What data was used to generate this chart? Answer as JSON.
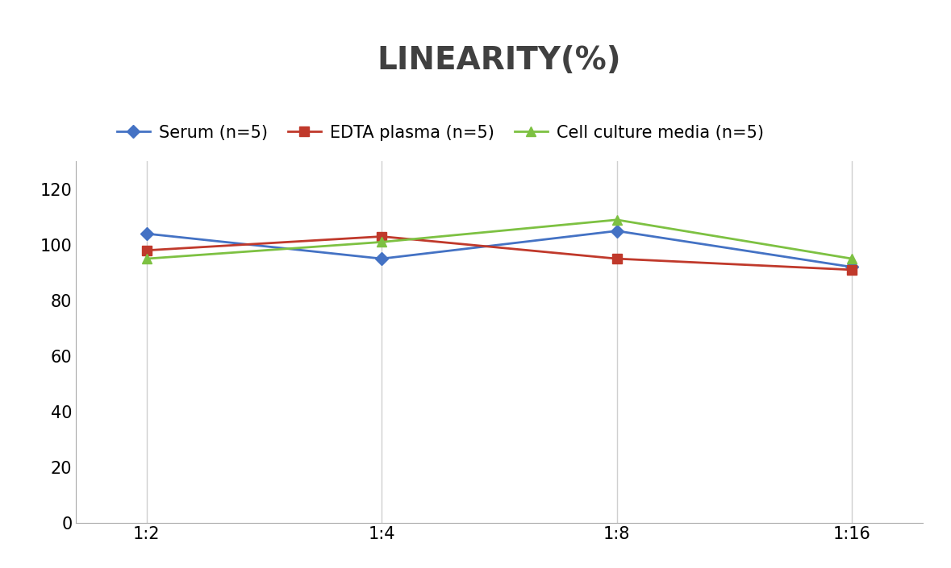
{
  "title": "LINEARITY(%)",
  "title_fontsize": 28,
  "title_fontweight": "bold",
  "title_color": "#404040",
  "x_labels": [
    "1:2",
    "1:4",
    "1:8",
    "1:16"
  ],
  "x_positions": [
    0,
    1,
    2,
    3
  ],
  "series": [
    {
      "label": "Serum (n=5)",
      "values": [
        104,
        95,
        105,
        92
      ],
      "color": "#4472C4",
      "marker": "D",
      "markersize": 8,
      "linewidth": 2
    },
    {
      "label": "EDTA plasma (n=5)",
      "values": [
        98,
        103,
        95,
        91
      ],
      "color": "#C0392B",
      "marker": "s",
      "markersize": 8,
      "linewidth": 2
    },
    {
      "label": "Cell culture media (n=5)",
      "values": [
        95,
        101,
        109,
        95
      ],
      "color": "#7DC142",
      "marker": "^",
      "markersize": 9,
      "linewidth": 2
    }
  ],
  "ylim": [
    0,
    130
  ],
  "yticks": [
    0,
    20,
    40,
    60,
    80,
    100,
    120
  ],
  "grid_color": "#D0D0D0",
  "grid_linewidth": 1,
  "background_color": "#FFFFFF",
  "legend_fontsize": 15,
  "tick_fontsize": 15,
  "axis_line_color": "#AAAAAA"
}
